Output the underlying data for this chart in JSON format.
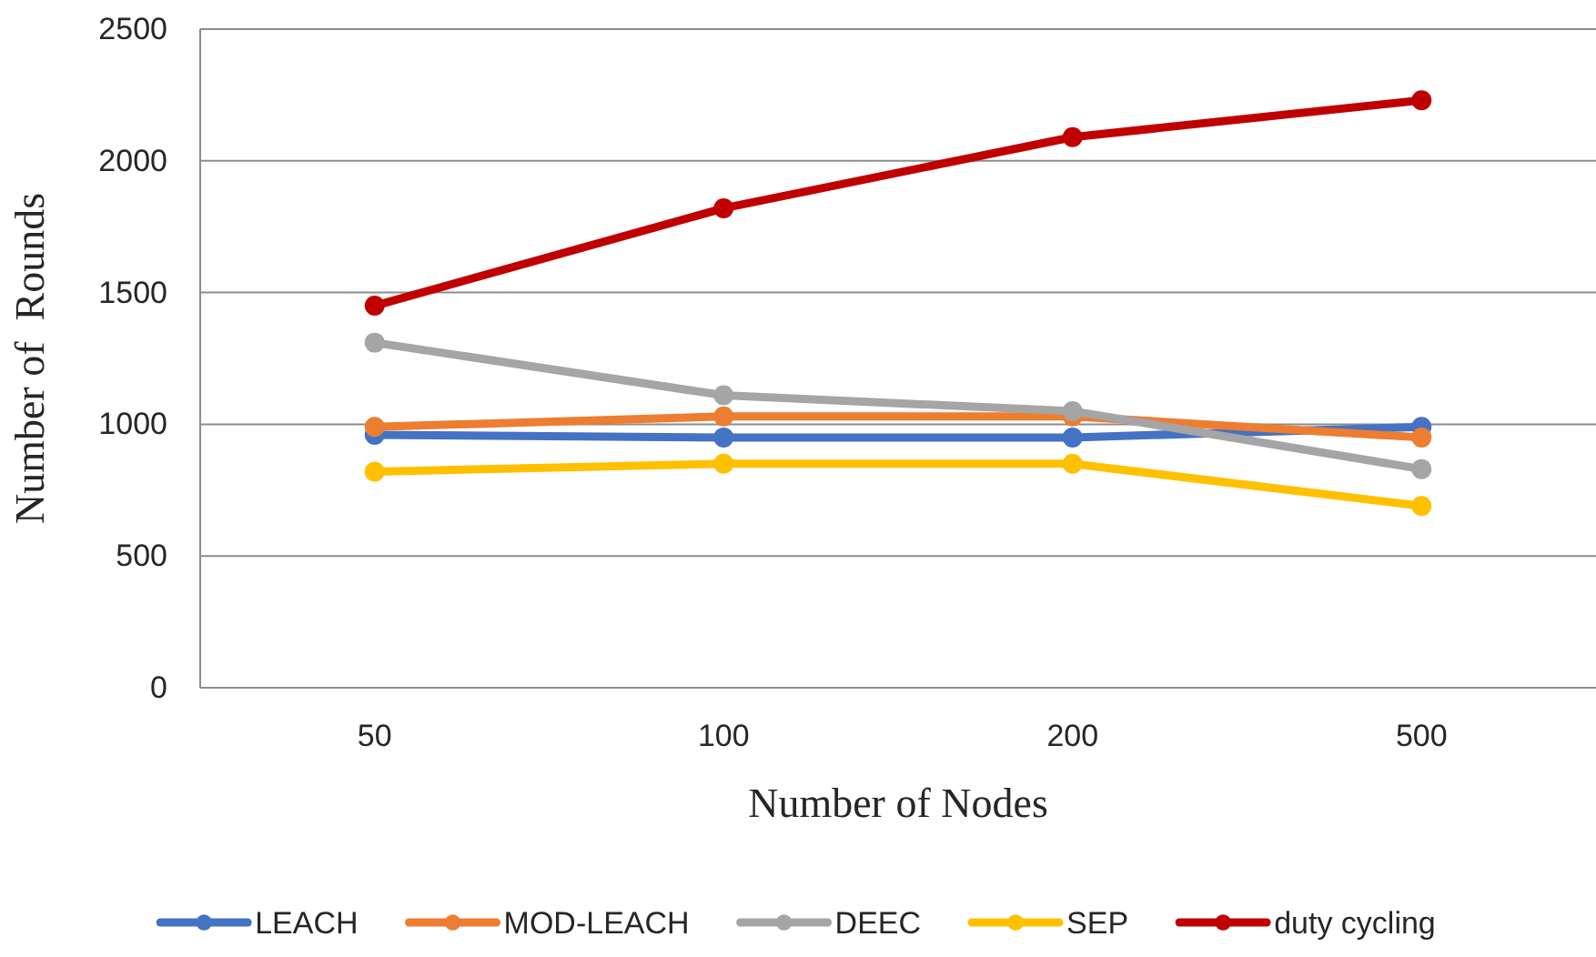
{
  "chart_data": {
    "type": "line",
    "xlabel": "Number of Nodes",
    "ylabel": "Number of  Rounds",
    "categories": [
      "50",
      "100",
      "200",
      "500"
    ],
    "series": [
      {
        "name": "LEACH",
        "color": "#4472c4",
        "values": [
          960,
          950,
          950,
          990
        ]
      },
      {
        "name": "MOD-LEACH",
        "color": "#ed7d31",
        "values": [
          990,
          1030,
          1030,
          950
        ]
      },
      {
        "name": "DEEC",
        "color": "#a5a5a5",
        "values": [
          1310,
          1110,
          1050,
          830
        ]
      },
      {
        "name": "SEP",
        "color": "#ffc000",
        "values": [
          820,
          850,
          850,
          690
        ]
      },
      {
        "name": "duty cycling",
        "color": "#c00000",
        "values": [
          1450,
          1820,
          2090,
          2230
        ]
      }
    ],
    "ylim": [
      0,
      2500
    ],
    "yticks": [
      0,
      500,
      1000,
      1500,
      2000,
      2500
    ],
    "grid": "y",
    "legend": "bottom",
    "marker": "circle",
    "line_style": "solid"
  }
}
